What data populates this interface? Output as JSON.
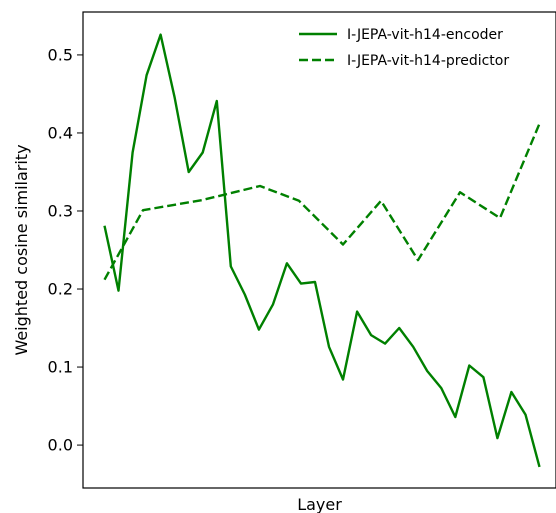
{
  "chart_data": {
    "type": "line",
    "title": "",
    "xlabel": "Layer",
    "ylabel": "Weighted cosine similarity",
    "ylim": [
      -0.055,
      0.555
    ],
    "yticks": [
      0.0,
      0.1,
      0.2,
      0.3,
      0.4,
      0.5
    ],
    "ytick_labels": [
      "0.0",
      "0.1",
      "0.2",
      "0.3",
      "0.4",
      "0.5"
    ],
    "x_tick_labels_shown": false,
    "grid": false,
    "legend_position": "top-right",
    "color": "#008000",
    "series": [
      {
        "name": "I-JEPA-vit-h14-encoder",
        "style": "solid",
        "x": [
          0,
          1,
          2,
          3,
          4,
          5,
          6,
          7,
          8,
          9,
          10,
          11,
          12,
          13,
          14,
          15,
          16,
          17,
          18,
          19,
          20,
          21,
          22,
          23,
          24,
          25,
          26,
          27,
          28,
          29,
          30,
          31
        ],
        "values": [
          0.281,
          0.198,
          0.375,
          0.474,
          0.526,
          0.445,
          0.35,
          0.375,
          0.441,
          0.229,
          0.193,
          0.148,
          0.18,
          0.233,
          0.207,
          0.209,
          0.126,
          0.084,
          0.171,
          0.141,
          0.13,
          0.15,
          0.126,
          0.095,
          0.073,
          0.036,
          0.102,
          0.087,
          0.009,
          0.068,
          0.039,
          -0.028
        ]
      },
      {
        "name": "I-JEPA-vit-h14-predictor",
        "style": "dashed",
        "x": [
          0,
          1,
          2,
          3,
          4,
          5,
          6,
          7,
          8,
          9,
          10,
          11,
          12
        ],
        "values": [
          0.212,
          0.301,
          0.314,
          0.322,
          0.332,
          0.313,
          0.257,
          0.313,
          0.237,
          0.324,
          0.291,
          0.412,
          0.412
        ],
        "x_positions": [
          0,
          3,
          7.5,
          11,
          14,
          17,
          21,
          24.5,
          27,
          30.5,
          34,
          36.5,
          36.5
        ]
      }
    ]
  }
}
